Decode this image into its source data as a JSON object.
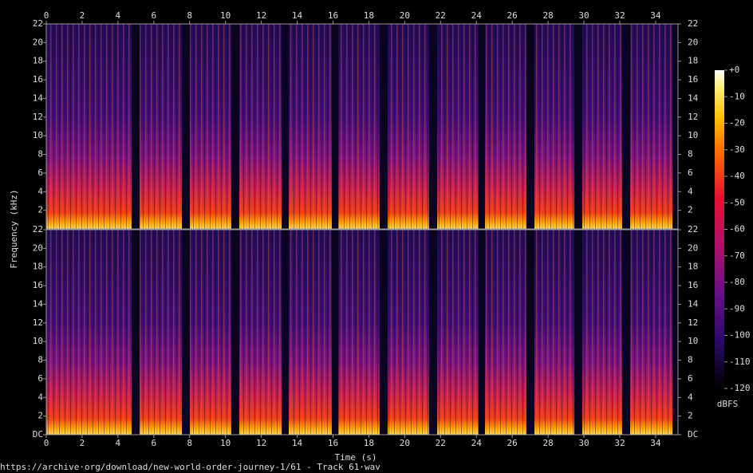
{
  "chart_data": {
    "type": "spectrogram",
    "xlabel": "Time (s)",
    "ylabel": "Frequency (kHz)",
    "xlim": [
      0,
      35.25
    ],
    "xticks": [
      0,
      2,
      4,
      6,
      8,
      10,
      12,
      14,
      16,
      18,
      20,
      22,
      24,
      26,
      28,
      30,
      32,
      34
    ],
    "panels": [
      {
        "ylim": [
          0,
          22
        ],
        "yticks": [
          2,
          4,
          6,
          8,
          10,
          12,
          14,
          16,
          18,
          20,
          22
        ]
      },
      {
        "ylim": [
          0,
          22
        ],
        "yticks": [
          {
            "value": 0,
            "label": "DC"
          },
          2,
          4,
          6,
          8,
          10,
          12,
          14,
          16,
          18,
          20,
          22
        ]
      }
    ],
    "segments": [
      {
        "start": 0,
        "end": 4.76
      },
      {
        "start": 5.21,
        "end": 7.57
      },
      {
        "start": 8.01,
        "end": 10.32
      },
      {
        "start": 10.77,
        "end": 13.13
      },
      {
        "start": 13.53,
        "end": 15.93
      },
      {
        "start": 16.29,
        "end": 18.6
      },
      {
        "start": 19.05,
        "end": 21.36
      },
      {
        "start": 21.81,
        "end": 24.12
      },
      {
        "start": 24.48,
        "end": 26.79
      },
      {
        "start": 27.24,
        "end": 29.46
      },
      {
        "start": 29.91,
        "end": 32.13
      },
      {
        "start": 32.58,
        "end": 34.94
      }
    ],
    "colorbar": {
      "label": "dBFS",
      "lim": [
        -120,
        0
      ],
      "ticks": [
        {
          "value": 0,
          "label": "+0"
        },
        -10,
        -20,
        -30,
        -40,
        -50,
        -60,
        -70,
        -80,
        -90,
        -100,
        -110,
        -120
      ]
    },
    "source": "https://archive·org/download/new-world-order-journey-1/61 - Track 61·wav"
  }
}
